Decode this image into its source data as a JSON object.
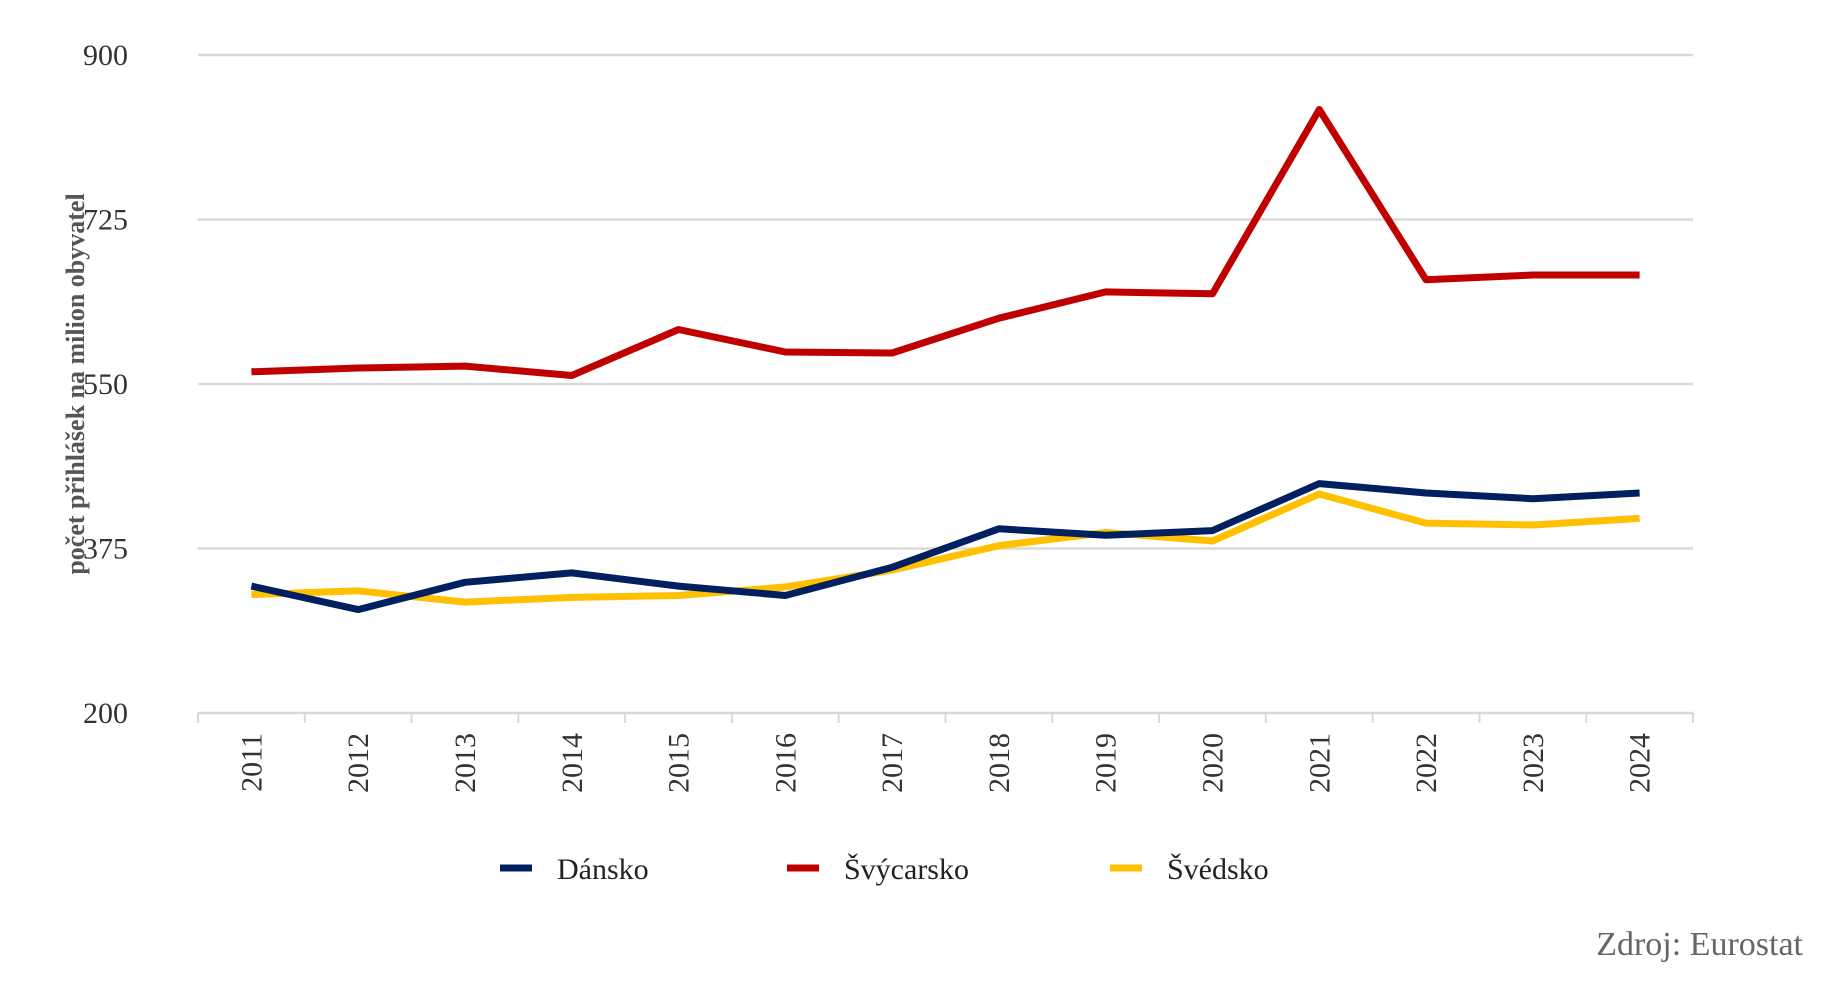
{
  "chart_data": {
    "type": "line",
    "title": "",
    "xlabel": "",
    "ylabel": "počet přihlášek na milion obyvatel",
    "ylim": [
      200,
      900
    ],
    "yticks": [
      200,
      375,
      550,
      725,
      900
    ],
    "grid": true,
    "legend_position": "bottom",
    "categories": [
      "2011",
      "2012",
      "2013",
      "2014",
      "2015",
      "2016",
      "2017",
      "2018",
      "2019",
      "2020",
      "2021",
      "2022",
      "2023",
      "2024"
    ],
    "series": [
      {
        "name": "Švýcarsko",
        "color": "#c00000",
        "values": [
          563,
          567,
          569,
          559,
          608,
          584,
          583,
          620,
          648,
          646,
          842,
          661,
          666,
          666
        ]
      },
      {
        "name": "Švédsko",
        "color": "#ffc000",
        "values": [
          326,
          330,
          318,
          323,
          325,
          334,
          352,
          378,
          392,
          383,
          433,
          402,
          400,
          407
        ]
      },
      {
        "name": "Dánsko",
        "color": "#002060",
        "values": [
          335,
          310,
          339,
          349,
          335,
          325,
          355,
          396,
          389,
          394,
          444,
          434,
          428,
          434
        ]
      }
    ],
    "legend_order": [
      "Dánsko",
      "Švýcarsko",
      "Švédsko"
    ]
  },
  "source": "Zdroj: Eurostat"
}
